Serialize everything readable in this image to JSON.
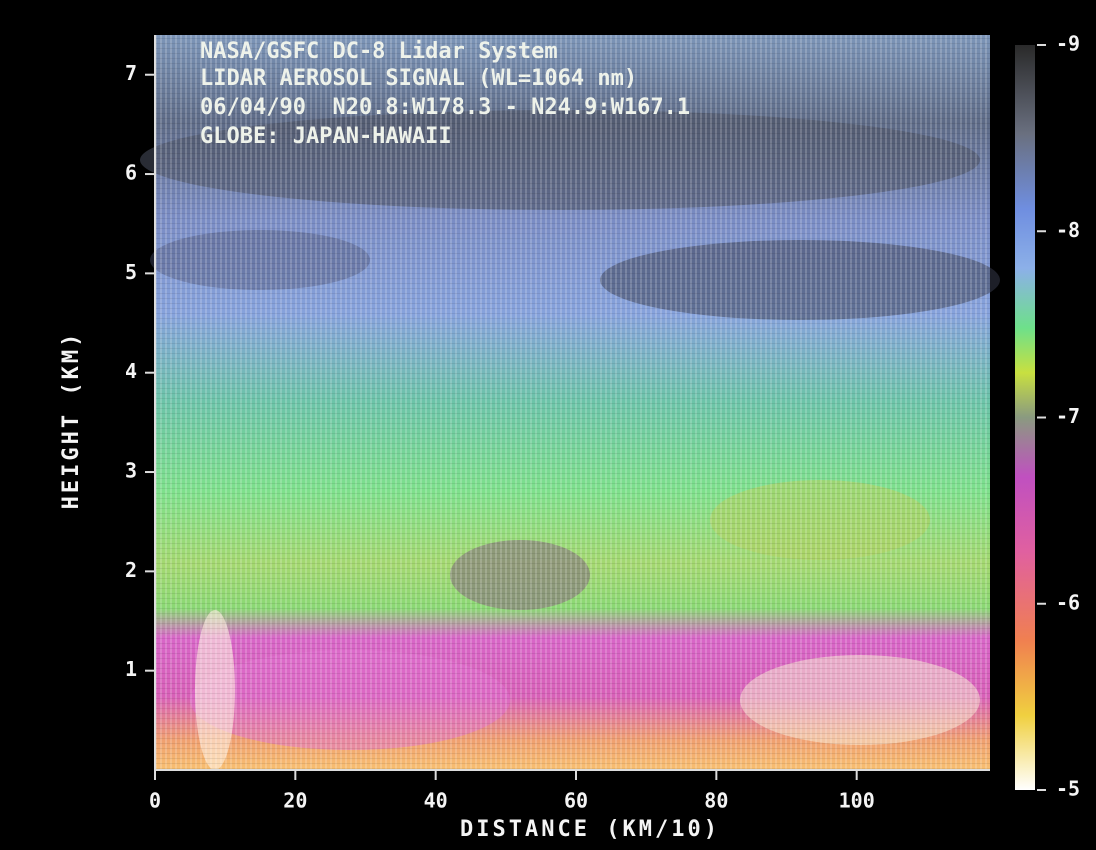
{
  "chart_data": {
    "type": "heatmap",
    "annotations": [
      "NASA/GSFC DC-8 Lidar System",
      "LIDAR AEROSOL SIGNAL (WL=1064 nm)",
      "06/04/90  N20.8:W178.3 - N24.9:W167.1",
      "GLOBE: JAPAN-HAWAII"
    ],
    "xlabel": "DISTANCE (KM/10)",
    "ylabel": "HEIGHT (KM)",
    "xlim": [
      0,
      119
    ],
    "xticks": [
      0,
      20,
      40,
      60,
      80,
      100
    ],
    "ylim": [
      0,
      7.4
    ],
    "yticks": [
      1,
      2,
      3,
      4,
      5,
      6,
      7
    ],
    "colorbar": {
      "lim": [
        -9,
        -5
      ],
      "ticks": [
        -9,
        -8,
        -7,
        -6,
        -5
      ]
    }
  }
}
